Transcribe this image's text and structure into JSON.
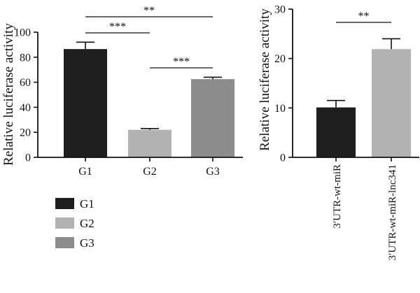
{
  "chart_data": [
    {
      "type": "bar",
      "categories": [
        "G1",
        "G2",
        "G3"
      ],
      "values": [
        86.5,
        22,
        62.5
      ],
      "errors": [
        5.5,
        1,
        1.5
      ],
      "colors": [
        "#1e1e1e",
        "#b2b2b2",
        "#8c8c8c"
      ],
      "title": "",
      "xlabel": "",
      "ylabel": "Relative luciferase activity",
      "ylim": [
        0,
        100
      ],
      "yticks": [
        0,
        20,
        40,
        60,
        80,
        100
      ],
      "significance": [
        {
          "from": "G1",
          "to": "G2",
          "label": "***"
        },
        {
          "from": "G1",
          "to": "G3",
          "label": "**"
        },
        {
          "from": "G2",
          "to": "G3",
          "label": "***"
        }
      ],
      "legend": {
        "position": "bottom-left",
        "entries": [
          {
            "label": "G1",
            "color": "#1e1e1e"
          },
          {
            "label": "G2",
            "color": "#b2b2b2"
          },
          {
            "label": "G3",
            "color": "#8c8c8c"
          }
        ]
      }
    },
    {
      "type": "bar",
      "categories": [
        "3′UTR-wt-miR",
        "3′UTR-wt-miR-lnc341"
      ],
      "values": [
        10.1,
        21.9
      ],
      "errors": [
        1.4,
        2.1
      ],
      "colors": [
        "#1e1e1e",
        "#b2b2b2"
      ],
      "title": "",
      "xlabel": "",
      "ylabel": "Relative luciferase activity",
      "ylim": [
        0,
        30
      ],
      "yticks": [
        0,
        10,
        20,
        30
      ],
      "significance": [
        {
          "from": "3′UTR-wt-miR",
          "to": "3′UTR-wt-miR-lnc341",
          "label": "**"
        }
      ]
    }
  ]
}
